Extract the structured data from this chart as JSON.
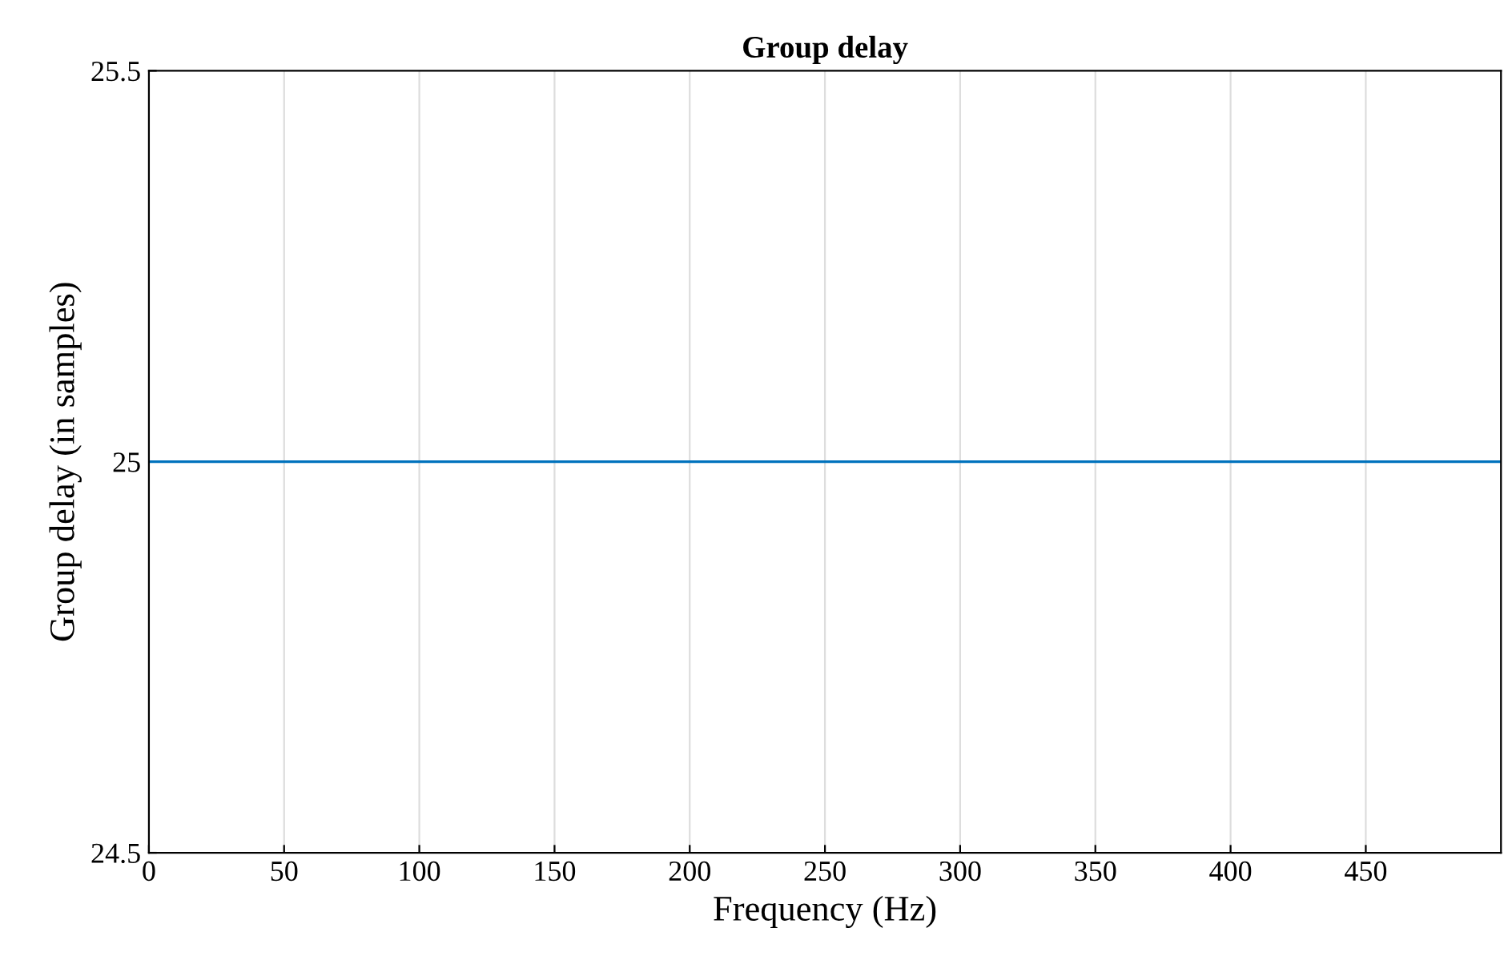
{
  "chart_data": {
    "type": "line",
    "title": "Group delay",
    "xlabel": "Frequency (Hz)",
    "ylabel": "Group delay (in samples)",
    "x": [
      0,
      500
    ],
    "series": [
      {
        "color": "#0072bd",
        "values": [
          25,
          25
        ]
      }
    ],
    "xlim": [
      0,
      500
    ],
    "xticks": [
      0,
      50,
      100,
      150,
      200,
      250,
      300,
      350,
      400,
      450
    ],
    "ylim": [
      24.5,
      25.5
    ],
    "yticks": [
      24.5,
      25,
      25.5
    ],
    "grid": "x",
    "line_style": "solid"
  }
}
